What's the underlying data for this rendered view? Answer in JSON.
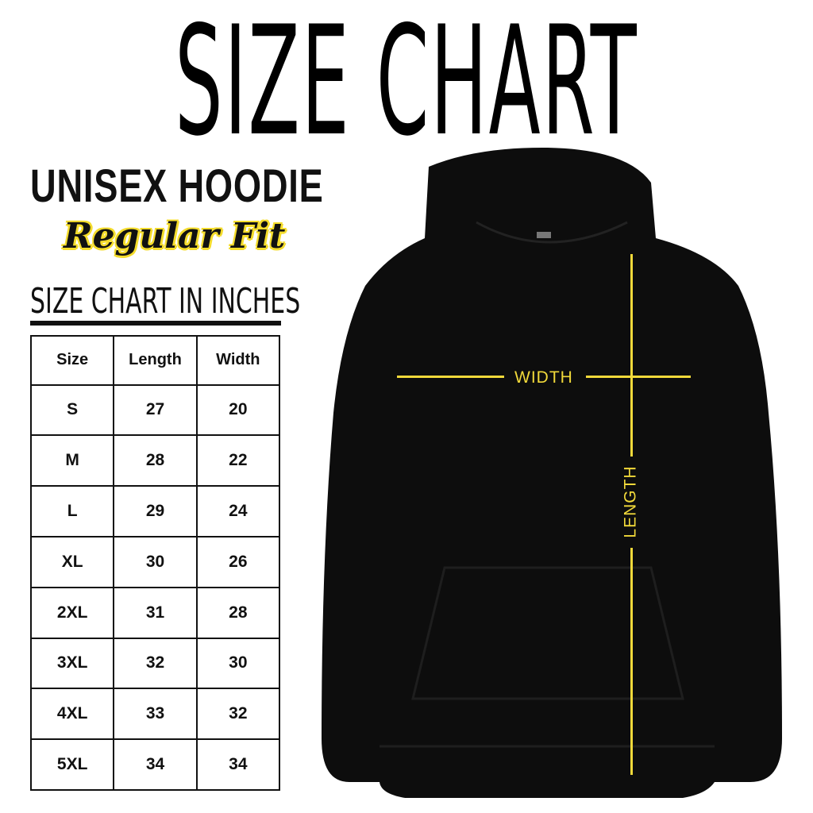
{
  "title": "SIZE CHART",
  "product": {
    "name": "UNISEX HOODIE",
    "fit": "Regular Fit",
    "unit_heading": "SIZE CHART IN INCHES"
  },
  "table": {
    "headers": [
      "Size",
      "Length",
      "Width"
    ],
    "rows": [
      [
        "S",
        "27",
        "20"
      ],
      [
        "M",
        "28",
        "22"
      ],
      [
        "L",
        "29",
        "24"
      ],
      [
        "XL",
        "30",
        "26"
      ],
      [
        "2XL",
        "31",
        "28"
      ],
      [
        "3XL",
        "32",
        "30"
      ],
      [
        "4XL",
        "33",
        "32"
      ],
      [
        "5XL",
        "34",
        "34"
      ]
    ]
  },
  "diagram": {
    "width_label": "WIDTH",
    "length_label": "LENGTH",
    "line_color": "#f1d93a",
    "garment_color": "#0d0d0d"
  }
}
